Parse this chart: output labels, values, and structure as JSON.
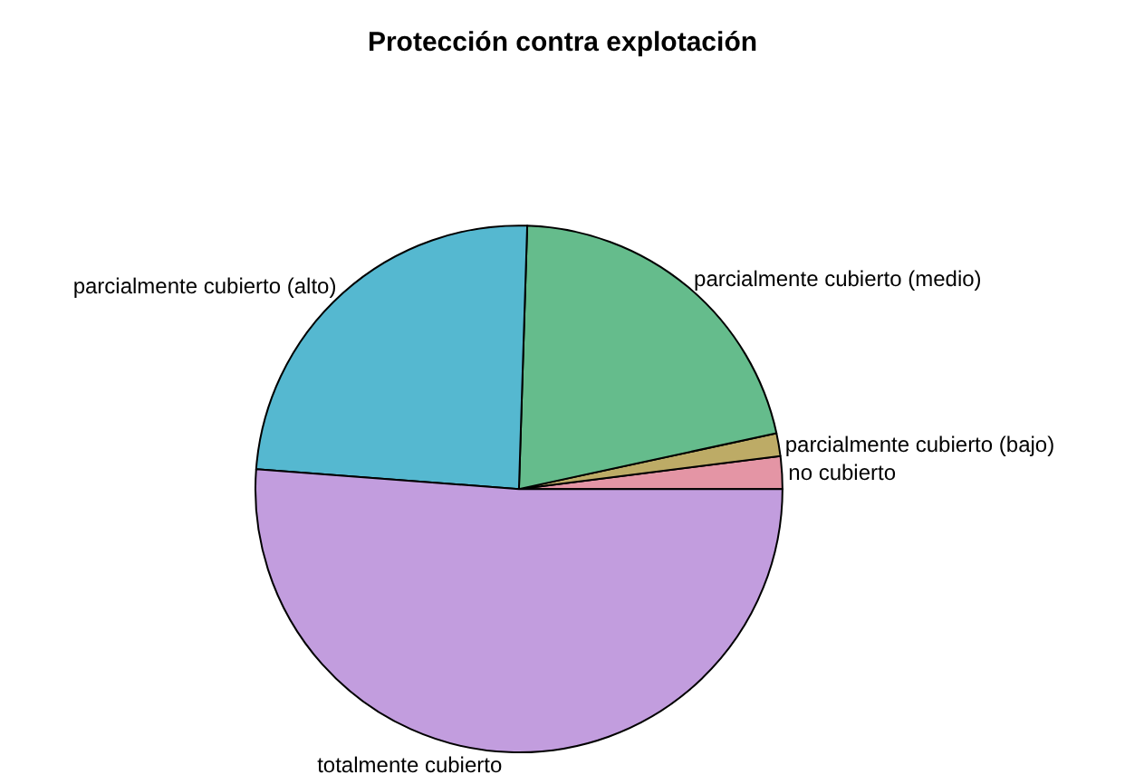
{
  "chart_data": {
    "type": "pie",
    "title": "Protección contra explotación",
    "categories": [
      "no cubierto",
      "parcialmente cubierto (bajo)",
      "parcialmente cubierto (medio)",
      "parcialmente cubierto (alto)",
      "totalmente cubierto"
    ],
    "values": [
      2.0,
      1.4,
      21.1,
      24.3,
      51.2
    ],
    "colors": [
      "#e495a5",
      "#bdab66",
      "#65bc8c",
      "#55b8d0",
      "#c29dde"
    ],
    "legend": false
  }
}
